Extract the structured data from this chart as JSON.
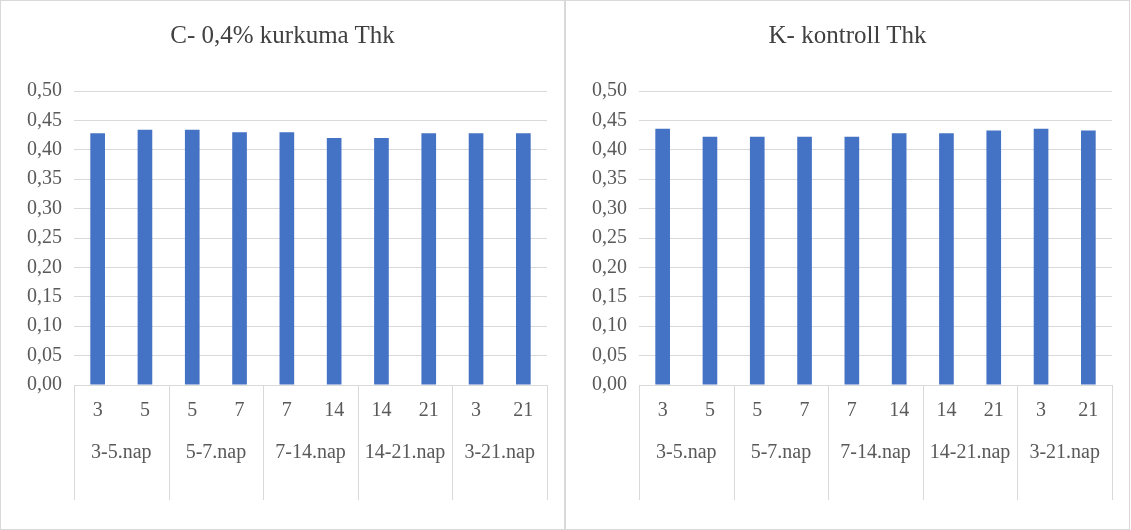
{
  "chart_data": [
    {
      "type": "bar",
      "title": "C- 0,4% kurkuma Thk",
      "categories": [
        "3",
        "5",
        "5",
        "7",
        "7",
        "14",
        "14",
        "21",
        "3",
        "21"
      ],
      "values": [
        0.428,
        0.434,
        0.434,
        0.43,
        0.43,
        0.42,
        0.42,
        0.428,
        0.428,
        0.428
      ],
      "color": "#4472c4",
      "ylim": [
        0,
        0.5
      ],
      "yticks": [
        {
          "value": 0,
          "label": "0,00"
        },
        {
          "value": 0.05,
          "label": "0,05"
        },
        {
          "value": 0.1,
          "label": "0,10"
        },
        {
          "value": 0.15,
          "label": "0,15"
        },
        {
          "value": 0.2,
          "label": "0,20"
        },
        {
          "value": 0.25,
          "label": "0,25"
        },
        {
          "value": 0.3,
          "label": "0,30"
        },
        {
          "value": 0.35,
          "label": "0,35"
        },
        {
          "value": 0.4,
          "label": "0,40"
        },
        {
          "value": 0.45,
          "label": "0,45"
        },
        {
          "value": 0.5,
          "label": "0,50"
        }
      ],
      "grid": "y",
      "annotations": [
        "3-5.nap",
        "5-7.nap",
        "7-14.nap",
        "14-21.nap",
        "3-21.nap"
      ]
    },
    {
      "type": "bar",
      "title": "K- kontroll Thk",
      "categories": [
        "3",
        "5",
        "5",
        "7",
        "7",
        "14",
        "14",
        "21",
        "3",
        "21"
      ],
      "values": [
        0.436,
        0.422,
        0.422,
        0.422,
        0.422,
        0.428,
        0.428,
        0.433,
        0.436,
        0.433
      ],
      "color": "#4472c4",
      "ylim": [
        0,
        0.5
      ],
      "yticks": [
        {
          "value": 0,
          "label": "0,00"
        },
        {
          "value": 0.05,
          "label": "0,05"
        },
        {
          "value": 0.1,
          "label": "0,10"
        },
        {
          "value": 0.15,
          "label": "0,15"
        },
        {
          "value": 0.2,
          "label": "0,20"
        },
        {
          "value": 0.25,
          "label": "0,25"
        },
        {
          "value": 0.3,
          "label": "0,30"
        },
        {
          "value": 0.35,
          "label": "0,35"
        },
        {
          "value": 0.4,
          "label": "0,40"
        },
        {
          "value": 0.45,
          "label": "0,45"
        },
        {
          "value": 0.5,
          "label": "0,50"
        }
      ],
      "grid": "y",
      "annotations": [
        "3-5.nap",
        "5-7.nap",
        "7-14.nap",
        "14-21.nap",
        "3-21.nap"
      ]
    }
  ]
}
